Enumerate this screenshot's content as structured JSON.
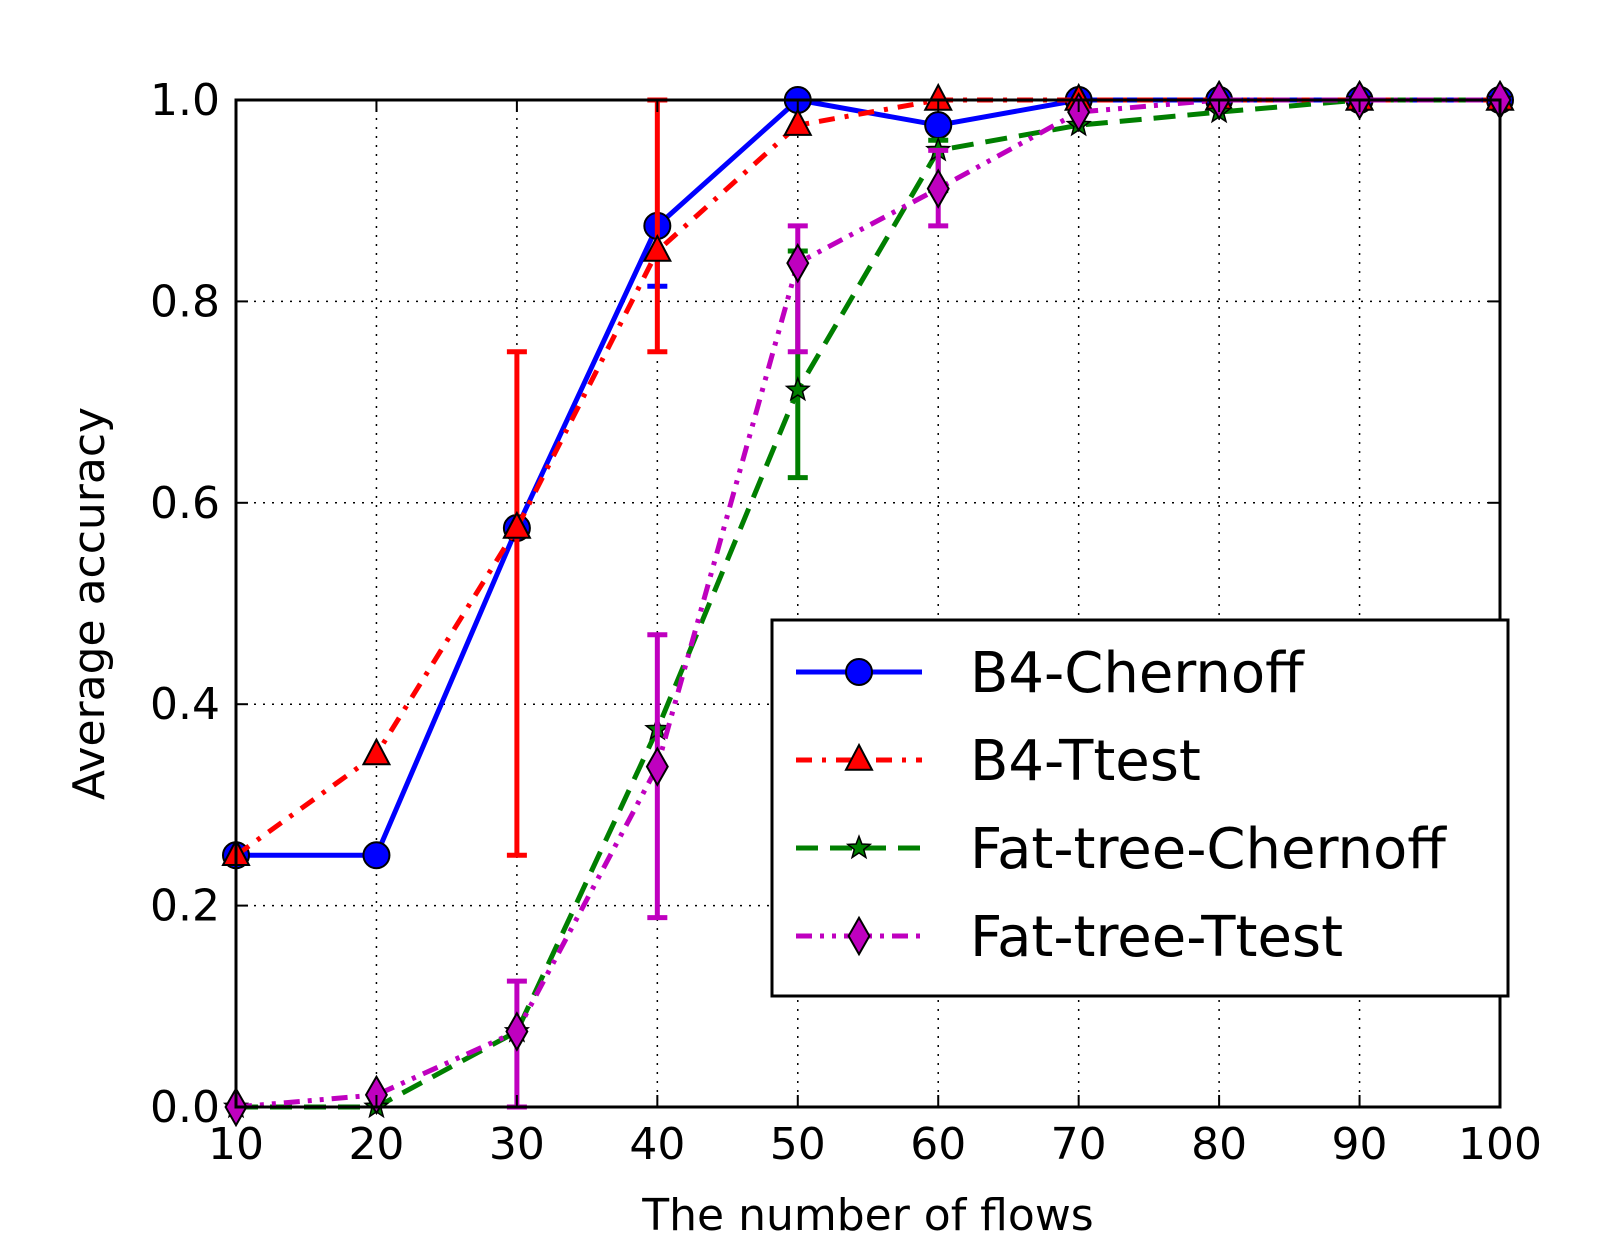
{
  "chart_data": {
    "type": "line",
    "xlabel": "The number of flows",
    "ylabel": "Average accuracy",
    "xlim": [
      10,
      100
    ],
    "ylim": [
      0,
      1
    ],
    "xticks": [
      "10",
      "20",
      "30",
      "40",
      "50",
      "60",
      "70",
      "80",
      "90",
      "100"
    ],
    "yticks": [
      "0.0",
      "0.2",
      "0.4",
      "0.6",
      "0.8",
      "1.0"
    ],
    "grid": true,
    "legend_position": "center-right",
    "x": [
      10,
      20,
      30,
      40,
      50,
      60,
      70,
      80,
      90,
      100
    ],
    "series": [
      {
        "name": "B4-Chernoff",
        "color": "#0000ff",
        "line_style": "solid",
        "marker": "circle",
        "values": [
          0.25,
          0.25,
          0.575,
          0.875,
          1.0,
          0.975,
          1.0,
          1.0,
          1.0,
          1.0
        ],
        "error_low": [
          0.25,
          0.25,
          0.575,
          0.815,
          1.0,
          0.975,
          1.0,
          1.0,
          1.0,
          1.0
        ],
        "error_high": [
          0.25,
          0.25,
          0.575,
          0.875,
          1.0,
          0.975,
          1.0,
          1.0,
          1.0,
          1.0
        ]
      },
      {
        "name": "B4-Ttest",
        "color": "#ff0000",
        "line_style": "dashdot",
        "marker": "triangle",
        "values": [
          0.25,
          0.35,
          0.575,
          0.85,
          0.975,
          1.0,
          1.0,
          1.0,
          1.0,
          1.0
        ],
        "error_low": [
          0.25,
          0.35,
          0.25,
          0.75,
          0.975,
          1.0,
          1.0,
          1.0,
          1.0,
          1.0
        ],
        "error_high": [
          0.25,
          0.35,
          0.75,
          1.0,
          0.975,
          1.0,
          1.0,
          1.0,
          1.0,
          1.0
        ]
      },
      {
        "name": "Fat-tree-Chernoff",
        "color": "#007f00",
        "line_style": "dashed",
        "marker": "star",
        "values": [
          0.0,
          0.0,
          0.075,
          0.375,
          0.712,
          0.95,
          0.975,
          0.988,
          1.0,
          1.0
        ],
        "error_low": [
          0.0,
          0.0,
          0.075,
          0.375,
          0.625,
          0.91,
          0.975,
          0.988,
          1.0,
          1.0
        ],
        "error_high": [
          0.0,
          0.0,
          0.075,
          0.375,
          0.85,
          0.96,
          0.975,
          0.988,
          1.0,
          1.0
        ]
      },
      {
        "name": "Fat-tree-Ttest",
        "color": "#bf00bf",
        "line_style": "dashdotdot",
        "marker": "diamond",
        "values": [
          0.0,
          0.012,
          0.075,
          0.338,
          0.838,
          0.912,
          0.988,
          1.0,
          1.0,
          1.0
        ],
        "error_low": [
          0.0,
          0.012,
          0.0,
          0.188,
          0.75,
          0.875,
          0.988,
          1.0,
          1.0,
          1.0
        ],
        "error_high": [
          0.0,
          0.012,
          0.125,
          0.469,
          0.875,
          0.95,
          0.988,
          1.0,
          1.0,
          1.0
        ]
      }
    ]
  }
}
